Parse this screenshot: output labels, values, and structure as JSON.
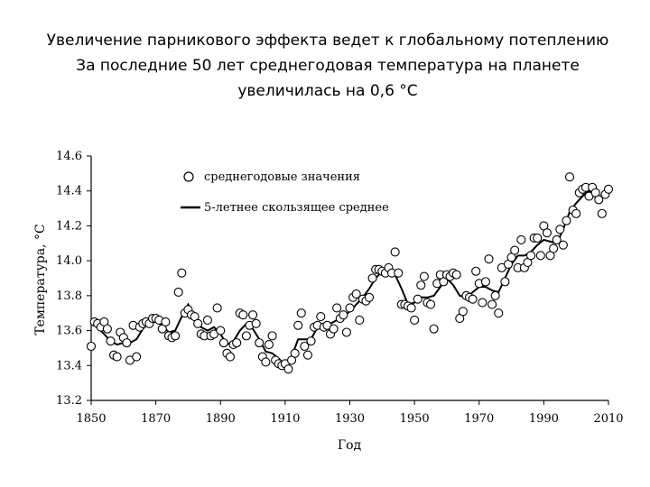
{
  "title_lines": [
    "Увеличение парникового эффекта ведет к глобальному потеплению",
    "За последние 50 лет среднегодовая температура на планете",
    "увеличилась на 0,6 °C"
  ],
  "chart_data": {
    "type": "scatter",
    "xlabel": "Год",
    "ylabel": "Температура, °C",
    "xlim": [
      1850,
      2010
    ],
    "xticks": [
      1850,
      1870,
      1890,
      1910,
      1930,
      1950,
      1970,
      1990,
      2010
    ],
    "ylim": [
      13.2,
      14.6
    ],
    "yticks": [
      13.2,
      13.4,
      13.6,
      13.8,
      {
        "value": 14,
        "label": "14.0"
      },
      14.2,
      14.4,
      14.6
    ],
    "grid": false,
    "legend": "upper left",
    "series": [
      {
        "name": "среднегодовые значения",
        "type": "scatter",
        "color": "#000000",
        "x": [
          1850,
          1851,
          1852,
          1853,
          1854,
          1855,
          1856,
          1857,
          1858,
          1859,
          1860,
          1861,
          1862,
          1863,
          1864,
          1865,
          1866,
          1867,
          1868,
          1869,
          1870,
          1871,
          1872,
          1873,
          1874,
          1875,
          1876,
          1877,
          1878,
          1879,
          1880,
          1881,
          1882,
          1883,
          1884,
          1885,
          1886,
          1887,
          1888,
          1889,
          1890,
          1891,
          1892,
          1893,
          1894,
          1895,
          1896,
          1897,
          1898,
          1899,
          1900,
          1901,
          1902,
          1903,
          1904,
          1905,
          1906,
          1907,
          1908,
          1909,
          1910,
          1911,
          1912,
          1913,
          1914,
          1915,
          1916,
          1917,
          1918,
          1919,
          1920,
          1921,
          1922,
          1923,
          1924,
          1925,
          1926,
          1927,
          1928,
          1929,
          1930,
          1931,
          1932,
          1933,
          1934,
          1935,
          1936,
          1937,
          1938,
          1939,
          1940,
          1941,
          1942,
          1943,
          1944,
          1945,
          1946,
          1947,
          1948,
          1949,
          1950,
          1951,
          1952,
          1953,
          1954,
          1955,
          1956,
          1957,
          1958,
          1959,
          1960,
          1961,
          1962,
          1963,
          1964,
          1965,
          1966,
          1967,
          1968,
          1969,
          1970,
          1971,
          1972,
          1973,
          1974,
          1975,
          1976,
          1977,
          1978,
          1979,
          1980,
          1981,
          1982,
          1983,
          1984,
          1985,
          1986,
          1987,
          1988,
          1989,
          1990,
          1991,
          1992,
          1993,
          1994,
          1995,
          1996,
          1997,
          1998,
          1999,
          2000,
          2001,
          2002,
          2003,
          2004,
          2005,
          2006,
          2007,
          2008,
          2009,
          2010
        ],
        "values": [
          13.51,
          13.65,
          13.64,
          13.62,
          13.65,
          13.61,
          13.54,
          13.46,
          13.45,
          13.59,
          13.56,
          13.53,
          13.43,
          13.63,
          13.45,
          13.62,
          13.64,
          13.65,
          13.64,
          13.67,
          13.67,
          13.66,
          13.61,
          13.65,
          13.57,
          13.56,
          13.57,
          13.82,
          13.93,
          13.7,
          13.72,
          13.69,
          13.68,
          13.64,
          13.58,
          13.57,
          13.66,
          13.57,
          13.58,
          13.73,
          13.6,
          13.53,
          13.47,
          13.45,
          13.52,
          13.53,
          13.7,
          13.69,
          13.57,
          13.63,
          13.69,
          13.64,
          13.53,
          13.45,
          13.42,
          13.52,
          13.57,
          13.43,
          13.41,
          13.4,
          13.41,
          13.38,
          13.43,
          13.47,
          13.63,
          13.7,
          13.51,
          13.46,
          13.54,
          13.62,
          13.63,
          13.68,
          13.62,
          13.63,
          13.58,
          13.61,
          13.73,
          13.67,
          13.69,
          13.59,
          13.73,
          13.79,
          13.81,
          13.66,
          13.78,
          13.77,
          13.79,
          13.9,
          13.95,
          13.95,
          13.94,
          13.93,
          13.96,
          13.93,
          14.05,
          13.93,
          13.75,
          13.75,
          13.74,
          13.73,
          13.66,
          13.78,
          13.86,
          13.91,
          13.76,
          13.75,
          13.61,
          13.87,
          13.92,
          13.88,
          13.92,
          13.91,
          13.93,
          13.92,
          13.67,
          13.71,
          13.8,
          13.79,
          13.78,
          13.94,
          13.87,
          13.76,
          13.88,
          14.01,
          13.75,
          13.8,
          13.7,
          13.96,
          13.88,
          13.98,
          14.02,
          14.06,
          13.96,
          14.12,
          13.96,
          13.99,
          14.03,
          14.13,
          14.13,
          14.03,
          14.2,
          14.16,
          14.03,
          14.07,
          14.12,
          14.18,
          14.09,
          14.23,
          14.48,
          14.29,
          14.27,
          14.39,
          14.41,
          14.42,
          14.37,
          14.42,
          14.39,
          14.35,
          14.27,
          14.38,
          14.41
        ]
      },
      {
        "name": "5-летнее скользящее среднее",
        "type": "line",
        "color": "#000000",
        "x": [
          1852,
          1854,
          1856,
          1858,
          1860,
          1862,
          1864,
          1866,
          1868,
          1870,
          1872,
          1874,
          1876,
          1878,
          1880,
          1882,
          1884,
          1886,
          1888,
          1890,
          1892,
          1894,
          1896,
          1898,
          1900,
          1902,
          1904,
          1906,
          1908,
          1910,
          1912,
          1914,
          1916,
          1918,
          1920,
          1922,
          1924,
          1926,
          1928,
          1930,
          1932,
          1934,
          1936,
          1938,
          1940,
          1942,
          1944,
          1946,
          1948,
          1950,
          1952,
          1954,
          1956,
          1958,
          1960,
          1962,
          1964,
          1966,
          1968,
          1970,
          1972,
          1974,
          1976,
          1978,
          1980,
          1982,
          1984,
          1986,
          1988,
          1990,
          1992,
          1994,
          1996,
          1998,
          2000,
          2002,
          2004,
          2006,
          2008
        ],
        "values": [
          13.62,
          13.58,
          13.54,
          13.52,
          13.53,
          13.53,
          13.55,
          13.61,
          13.65,
          13.65,
          13.63,
          13.59,
          13.6,
          13.68,
          13.75,
          13.68,
          13.62,
          13.6,
          13.62,
          13.58,
          13.52,
          13.54,
          13.6,
          13.64,
          13.61,
          13.55,
          13.48,
          13.47,
          13.44,
          13.4,
          13.45,
          13.55,
          13.55,
          13.55,
          13.62,
          13.63,
          13.64,
          13.66,
          13.68,
          13.71,
          13.75,
          13.79,
          13.84,
          13.9,
          13.94,
          13.96,
          13.92,
          13.84,
          13.75,
          13.76,
          13.79,
          13.79,
          13.8,
          13.85,
          13.9,
          13.86,
          13.8,
          13.79,
          13.82,
          13.85,
          13.85,
          13.83,
          13.82,
          13.9,
          13.98,
          14.03,
          14.03,
          14.05,
          14.09,
          14.12,
          14.11,
          14.1,
          14.18,
          14.28,
          14.33,
          14.37,
          14.4,
          14.37,
          14.37
        ]
      }
    ]
  }
}
